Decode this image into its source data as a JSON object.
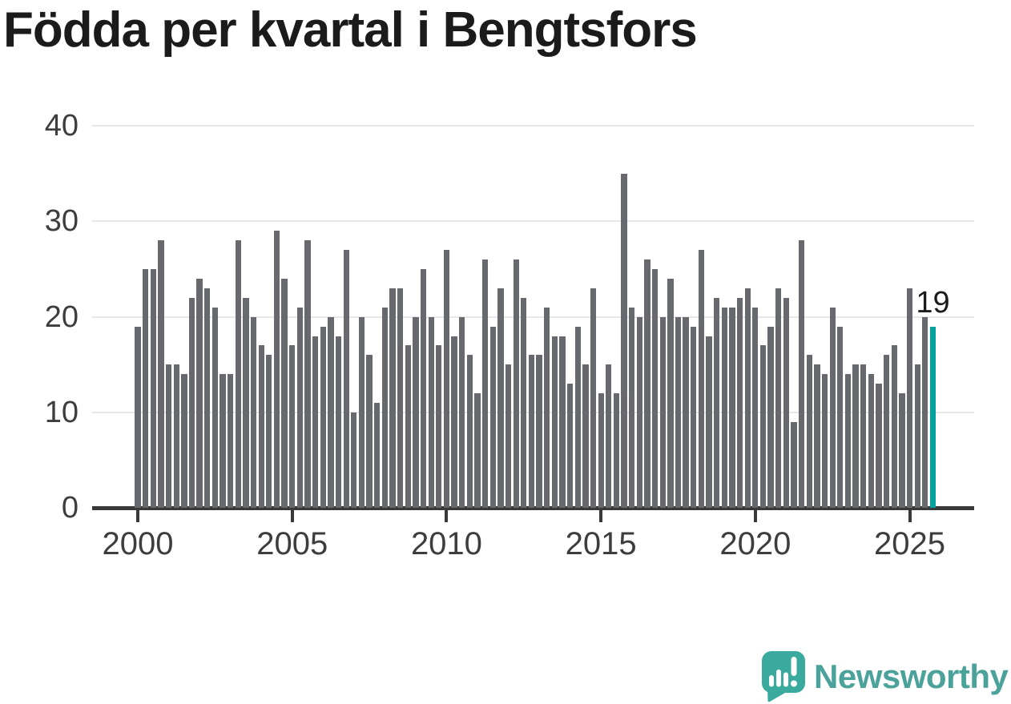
{
  "chart_data": {
    "type": "bar",
    "title": "Födda per kvartal i Bengtsfors",
    "x_unit": "quarter",
    "start_year": 2000,
    "start_quarter": 1,
    "end_year": 2025,
    "end_quarter": 4,
    "values": [
      19,
      25,
      25,
      28,
      15,
      15,
      14,
      22,
      24,
      23,
      21,
      14,
      14,
      28,
      22,
      20,
      17,
      16,
      29,
      24,
      17,
      21,
      28,
      18,
      19,
      20,
      18,
      27,
      10,
      20,
      16,
      11,
      21,
      23,
      23,
      17,
      20,
      25,
      20,
      17,
      27,
      18,
      20,
      16,
      12,
      26,
      19,
      23,
      15,
      26,
      22,
      16,
      16,
      21,
      18,
      18,
      13,
      19,
      15,
      23,
      12,
      15,
      12,
      35,
      21,
      20,
      26,
      25,
      20,
      24,
      20,
      20,
      19,
      27,
      18,
      22,
      21,
      21,
      22,
      23,
      21,
      17,
      19,
      23,
      22,
      9,
      28,
      16,
      15,
      14,
      21,
      19,
      14,
      15,
      15,
      14,
      13,
      16,
      17,
      12,
      23,
      15,
      20,
      19
    ],
    "xticks": [
      2000,
      2005,
      2010,
      2015,
      2020,
      2025
    ],
    "yticks": [
      0,
      10,
      20,
      30,
      40
    ],
    "ylim": [
      0,
      40
    ],
    "grid": true,
    "legend": false,
    "highlight_last": true,
    "annotation": {
      "text": "19"
    },
    "colors": {
      "bar": "#68686f",
      "highlight": "#00a39b",
      "gridline": "#e7e7e7",
      "axis": "#3a3a3a",
      "tick_label": "#3d3d3d",
      "title": "#1b1b1b"
    }
  },
  "branding": {
    "name": "Newsworthy",
    "icon": "newsworthy-bubble-chart-icon",
    "icon_color": "#3aa99e",
    "text_color": "#4aa29b"
  }
}
